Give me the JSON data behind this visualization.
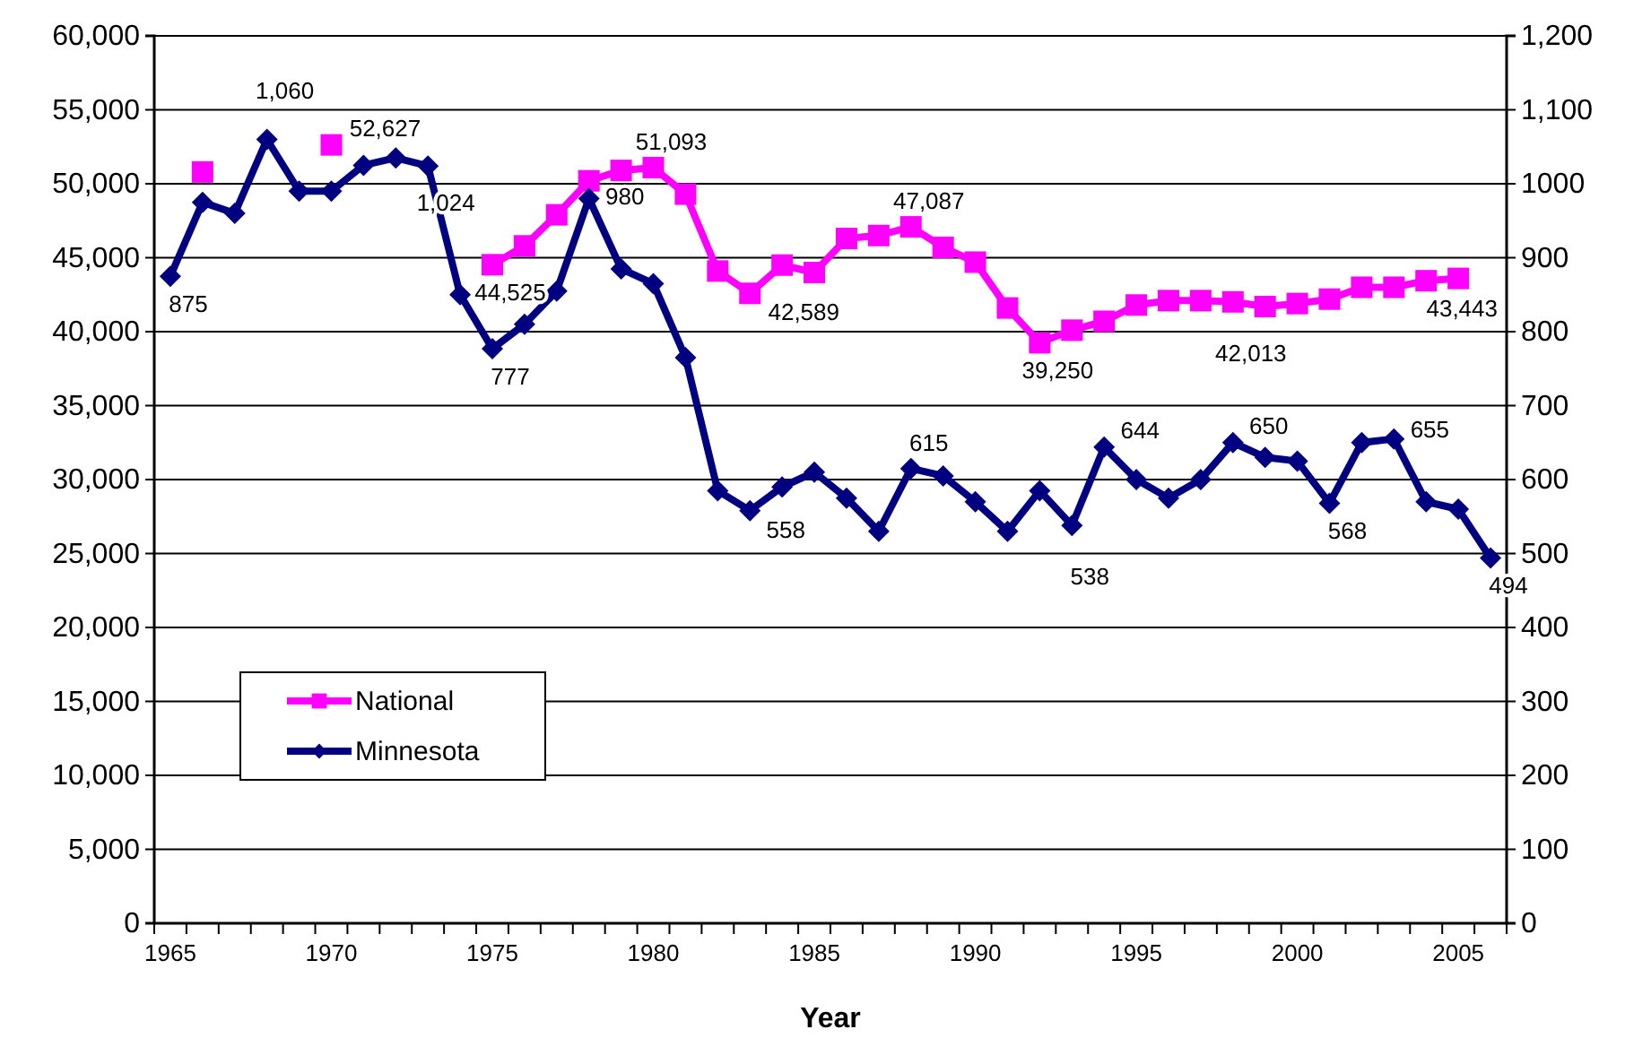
{
  "chart_data": {
    "type": "line",
    "xlabel": "Year",
    "categories": [
      "1965",
      null,
      null,
      null,
      null,
      "1970",
      null,
      null,
      null,
      null,
      "1975",
      null,
      null,
      null,
      null,
      "1980",
      null,
      null,
      null,
      null,
      "1985",
      null,
      null,
      null,
      null,
      "1990",
      null,
      null,
      null,
      null,
      "1995",
      null,
      null,
      null,
      null,
      "2000",
      null,
      null,
      null,
      null,
      "2005",
      null
    ],
    "series": [
      {
        "name": "National",
        "color": "#ff00ff",
        "marker": "square",
        "axis": "y",
        "values": [
          null,
          50800,
          null,
          null,
          null,
          52627,
          null,
          null,
          null,
          null,
          44525,
          45800,
          47900,
          50200,
          50900,
          51093,
          49300,
          44100,
          42589,
          44500,
          44000,
          46300,
          46500,
          47087,
          45700,
          44700,
          41600,
          39250,
          40100,
          40700,
          41800,
          42100,
          42100,
          42013,
          41700,
          41900,
          42200,
          43000,
          43000,
          43443,
          43600,
          null
        ],
        "value_labels": [
          null,
          null,
          null,
          null,
          null,
          "52,627",
          null,
          null,
          null,
          null,
          "44,525",
          null,
          null,
          null,
          null,
          "51,093",
          null,
          null,
          "42,589",
          null,
          null,
          null,
          null,
          "47,087",
          null,
          null,
          null,
          "39,250",
          null,
          null,
          null,
          null,
          null,
          "42,013",
          null,
          null,
          null,
          null,
          null,
          "43,443",
          null,
          null
        ]
      },
      {
        "name": "Minnesota",
        "color": "#000080",
        "marker": "diamond",
        "axis": "y2",
        "values": [
          875,
          975,
          960,
          1060,
          990,
          990,
          1025,
          1035,
          1024,
          850,
          777,
          810,
          855,
          980,
          885,
          865,
          765,
          585,
          558,
          590,
          610,
          575,
          530,
          615,
          605,
          570,
          530,
          585,
          538,
          644,
          600,
          575,
          600,
          650,
          630,
          625,
          568,
          650,
          655,
          570,
          560,
          494
        ],
        "value_labels": [
          "875",
          null,
          null,
          "1,060",
          null,
          null,
          null,
          null,
          "1,024",
          null,
          "777",
          null,
          null,
          "980",
          null,
          null,
          null,
          null,
          "558",
          null,
          null,
          null,
          null,
          "615",
          null,
          null,
          null,
          null,
          "538",
          "644",
          null,
          null,
          null,
          "650",
          null,
          null,
          "568",
          null,
          "655",
          null,
          null,
          "494"
        ]
      }
    ],
    "ylim": [
      0,
      60000
    ],
    "yticks": [
      {
        "value": 0,
        "label": "0"
      },
      {
        "value": 5000,
        "label": "5,000"
      },
      {
        "value": 10000,
        "label": "10,000"
      },
      {
        "value": 15000,
        "label": "15,000"
      },
      {
        "value": 20000,
        "label": "20,000"
      },
      {
        "value": 25000,
        "label": "25,000"
      },
      {
        "value": 30000,
        "label": "30,000"
      },
      {
        "value": 35000,
        "label": "35,000"
      },
      {
        "value": 40000,
        "label": "40,000"
      },
      {
        "value": 45000,
        "label": "45,000"
      },
      {
        "value": 50000,
        "label": "50,000"
      },
      {
        "value": 55000,
        "label": "55,000"
      },
      {
        "value": 60000,
        "label": "60,000"
      }
    ],
    "y2lim": [
      0,
      1200
    ],
    "y2ticks": [
      0,
      100,
      200,
      300,
      400,
      500,
      600,
      700,
      800,
      900,
      1000,
      {
        "value": 1100,
        "label": "1,100"
      },
      {
        "value": 1200,
        "label": "1,200"
      }
    ],
    "grid": "y",
    "legend": "bottom left",
    "line_style": "solid"
  }
}
